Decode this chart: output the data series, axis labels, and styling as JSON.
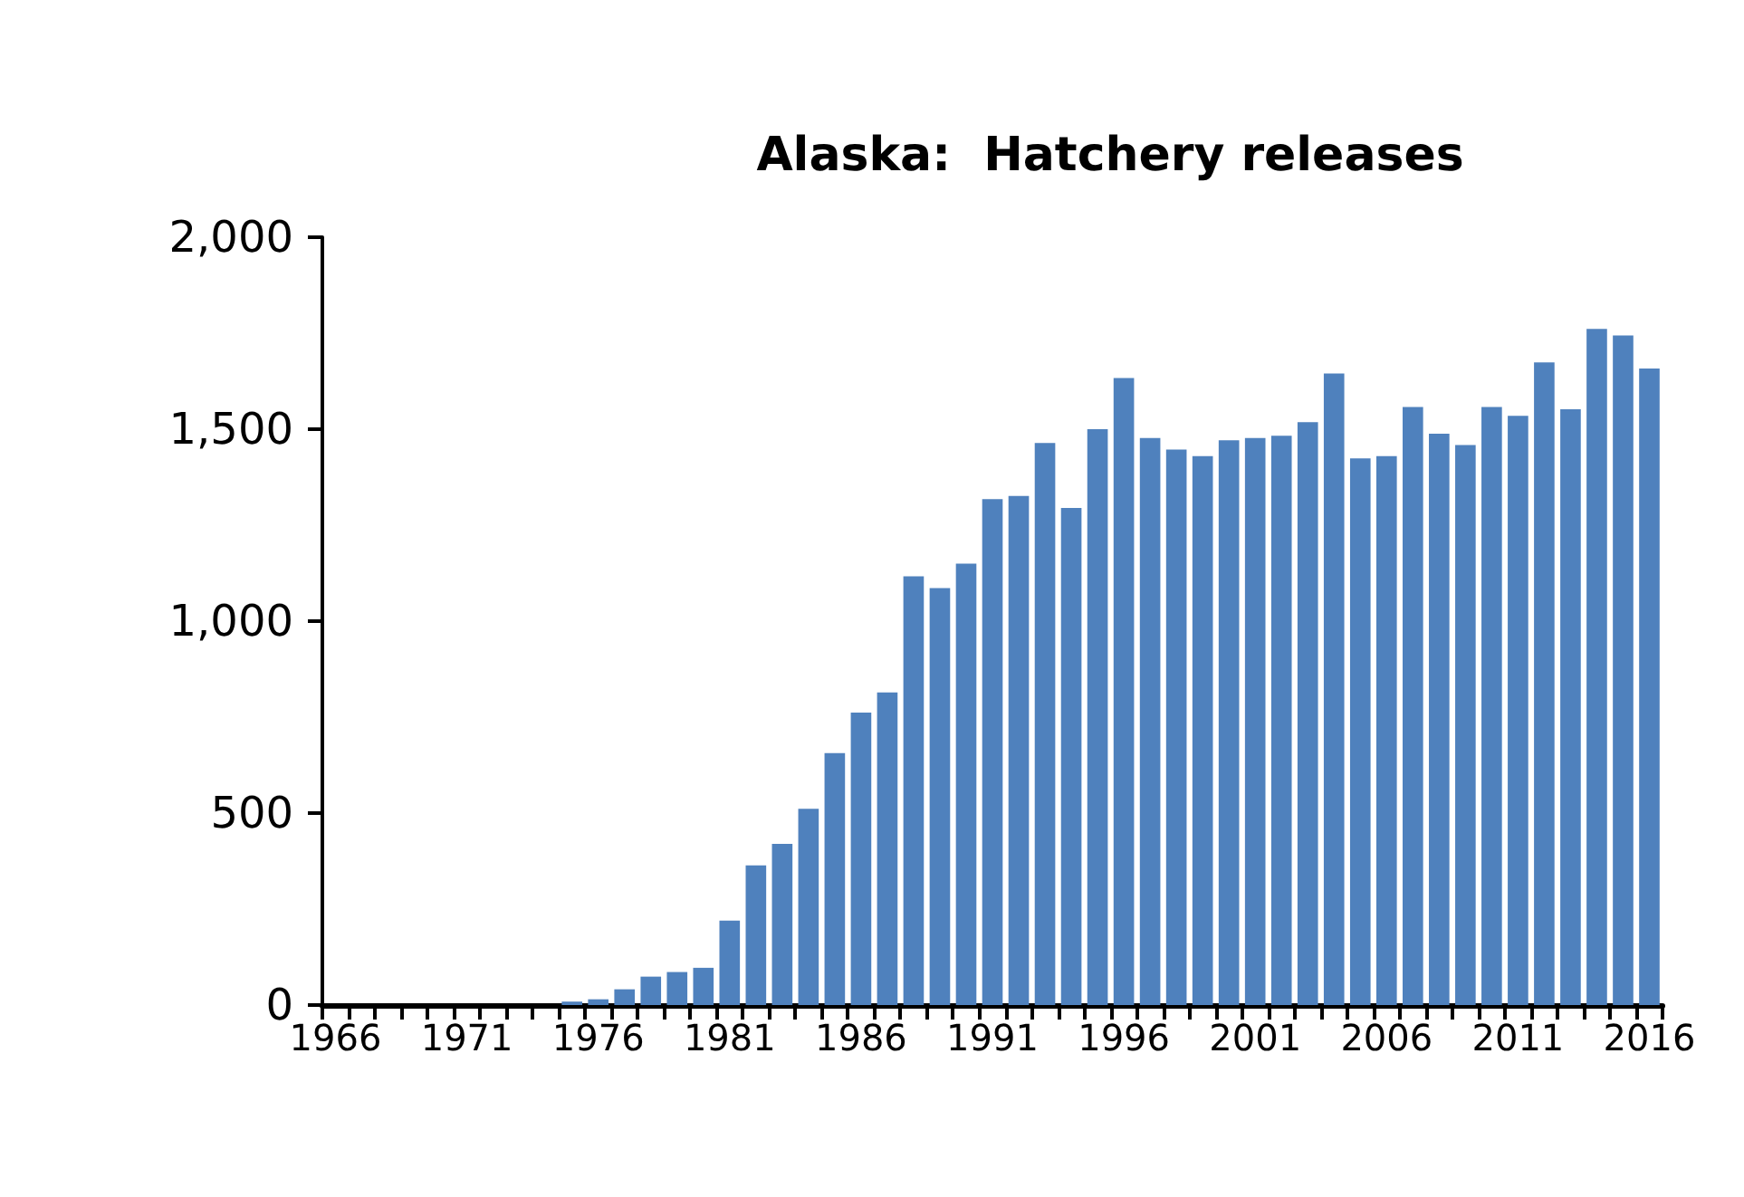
{
  "chart_data": {
    "type": "bar",
    "title": "Alaska:  Hatchery releases",
    "categories": [
      "1966",
      null,
      null,
      null,
      null,
      "1971",
      null,
      null,
      null,
      null,
      "1976",
      null,
      null,
      null,
      null,
      "1981",
      null,
      null,
      null,
      null,
      "1986",
      null,
      null,
      null,
      null,
      "1991",
      null,
      null,
      null,
      null,
      "1996",
      null,
      null,
      null,
      null,
      "2001",
      null,
      null,
      null,
      null,
      "2006",
      null,
      null,
      null,
      null,
      "2011",
      null,
      null,
      null,
      null,
      "2016"
    ],
    "values": [
      0,
      0,
      0,
      0,
      0,
      0,
      0,
      0,
      0,
      9,
      15,
      41,
      74,
      86,
      97,
      220,
      364,
      420,
      511,
      656,
      762,
      814,
      1117,
      1086,
      1150,
      1318,
      1326,
      1464,
      1295,
      1500,
      1633,
      1477,
      1447,
      1430,
      1471,
      1477,
      1483,
      1518,
      1645,
      1424,
      1430,
      1558,
      1488,
      1459,
      1558,
      1535,
      1674,
      1552,
      1761,
      1744,
      1658
    ],
    "color": "#4f81bd",
    "ylim": [
      0,
      2000
    ],
    "yticks": [
      0,
      500,
      {
        "value": 1000,
        "label": "1,000"
      },
      {
        "value": 1500,
        "label": "1,500"
      },
      {
        "value": 2000,
        "label": "2,000"
      }
    ],
    "grid": false
  }
}
